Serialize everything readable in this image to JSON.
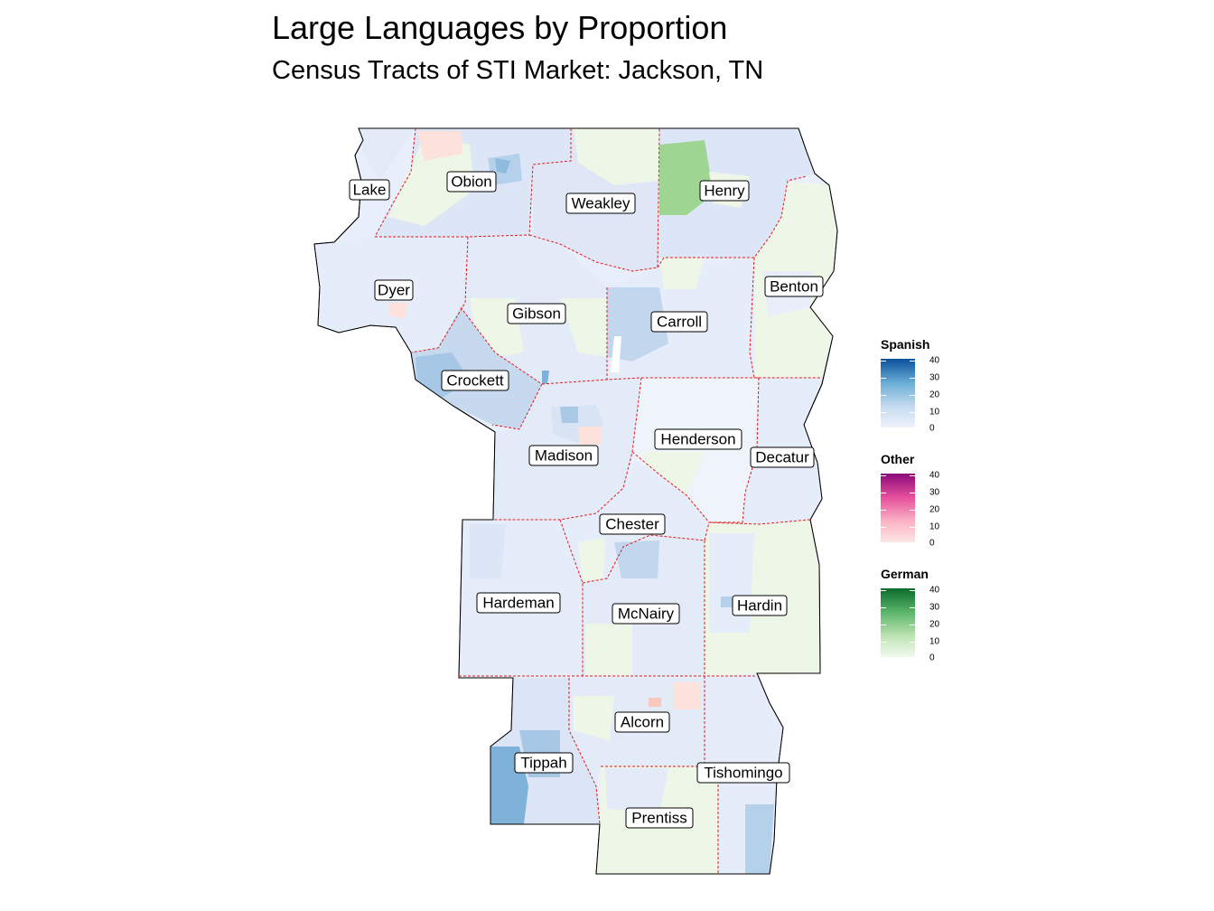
{
  "title": "Large Languages by Proportion",
  "subtitle": "Census Tracts of STI Market: Jackson, TN",
  "counties": [
    {
      "name": "Lake"
    },
    {
      "name": "Obion"
    },
    {
      "name": "Weakley"
    },
    {
      "name": "Henry"
    },
    {
      "name": "Dyer"
    },
    {
      "name": "Benton"
    },
    {
      "name": "Gibson"
    },
    {
      "name": "Carroll"
    },
    {
      "name": "Crockett"
    },
    {
      "name": "Henderson"
    },
    {
      "name": "Madison"
    },
    {
      "name": "Decatur"
    },
    {
      "name": "Chester"
    },
    {
      "name": "Hardeman"
    },
    {
      "name": "McNairy"
    },
    {
      "name": "Hardin"
    },
    {
      "name": "Alcorn"
    },
    {
      "name": "Tippah"
    },
    {
      "name": "Tishomingo"
    },
    {
      "name": "Prentiss"
    }
  ],
  "legends": [
    {
      "title": "Spanish",
      "ticks": [
        "40",
        "30",
        "20",
        "10",
        "0"
      ],
      "color_low": "#eef3fb",
      "color_mid": "#8dbde0",
      "color_high": "#08519c"
    },
    {
      "title": "Other",
      "ticks": [
        "40",
        "30",
        "20",
        "10",
        "0"
      ],
      "color_low": "#fde6e4",
      "color_mid": "#f987b5",
      "color_high": "#8b0a7a"
    },
    {
      "title": "German",
      "ticks": [
        "40",
        "30",
        "20",
        "10",
        "0"
      ],
      "color_low": "#f2f9ee",
      "color_mid": "#9ed79a",
      "color_high": "#0b6b2c"
    }
  ],
  "colors": {
    "county_border": "#e41a1c",
    "outline": "#000000",
    "spanish_light": "#e7edf9",
    "spanish_mid": "#c9dbef",
    "spanish_high": "#7fb2d8",
    "german_light": "#eef6e8",
    "german_high": "#9ed593",
    "other_light": "#fde2dc"
  }
}
